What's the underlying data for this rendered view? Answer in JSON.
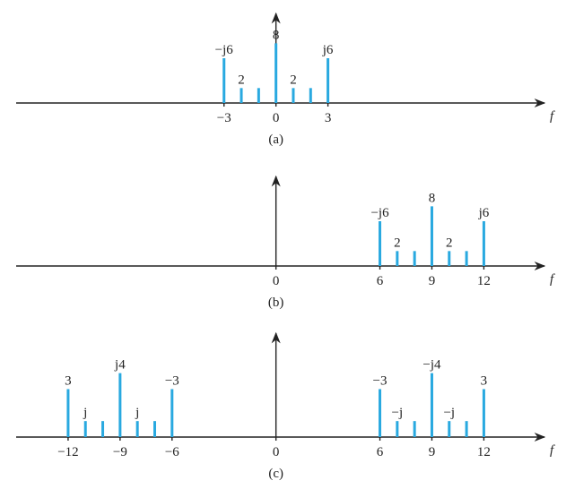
{
  "chart_data": [
    {
      "type": "stem",
      "caption": "(a)",
      "xlabel": "f",
      "color": "#29a9e0",
      "x": [
        -3,
        -2,
        -1,
        0,
        1,
        2,
        3
      ],
      "values": [
        6,
        2,
        2,
        8,
        2,
        2,
        6
      ],
      "value_labels": [
        "−j6",
        "2",
        null,
        "8",
        "2",
        null,
        "j6"
      ],
      "xlim": [
        -15,
        15.5
      ],
      "ylim": [
        0,
        12
      ],
      "xticks": [
        {
          "value": -3,
          "label": "−3"
        },
        0,
        3
      ]
    },
    {
      "type": "stem",
      "caption": "(b)",
      "xlabel": "f",
      "color": "#29a9e0",
      "x": [
        6,
        7,
        8,
        9,
        10,
        11,
        12
      ],
      "values": [
        6,
        2,
        2,
        8,
        2,
        2,
        6
      ],
      "value_labels": [
        "−j6",
        "2",
        null,
        "8",
        "2",
        null,
        "j6"
      ],
      "xlim": [
        -15,
        15.5
      ],
      "ylim": [
        0,
        12
      ],
      "xticks": [
        0,
        6,
        9,
        12
      ]
    },
    {
      "type": "stem",
      "caption": "(c)",
      "xlabel": "f",
      "color": "#29a9e0",
      "x": [
        -12,
        -11,
        -10,
        -9,
        -8,
        -7,
        -6,
        6,
        7,
        8,
        9,
        10,
        11,
        12
      ],
      "values": [
        3,
        1,
        1,
        4,
        1,
        1,
        3,
        3,
        1,
        1,
        4,
        1,
        1,
        3
      ],
      "value_labels": [
        "3",
        "j",
        null,
        "j4",
        "j",
        null,
        "−3",
        "−3",
        "−j",
        null,
        "−j4",
        "−j",
        null,
        "3"
      ],
      "xlim": [
        -15,
        15.5
      ],
      "ylim": [
        0,
        6.5
      ],
      "xticks": [
        {
          "value": -12,
          "label": "−12"
        },
        {
          "value": -9,
          "label": "−9"
        },
        {
          "value": -6,
          "label": "−6"
        },
        0,
        6,
        9,
        12
      ]
    }
  ]
}
